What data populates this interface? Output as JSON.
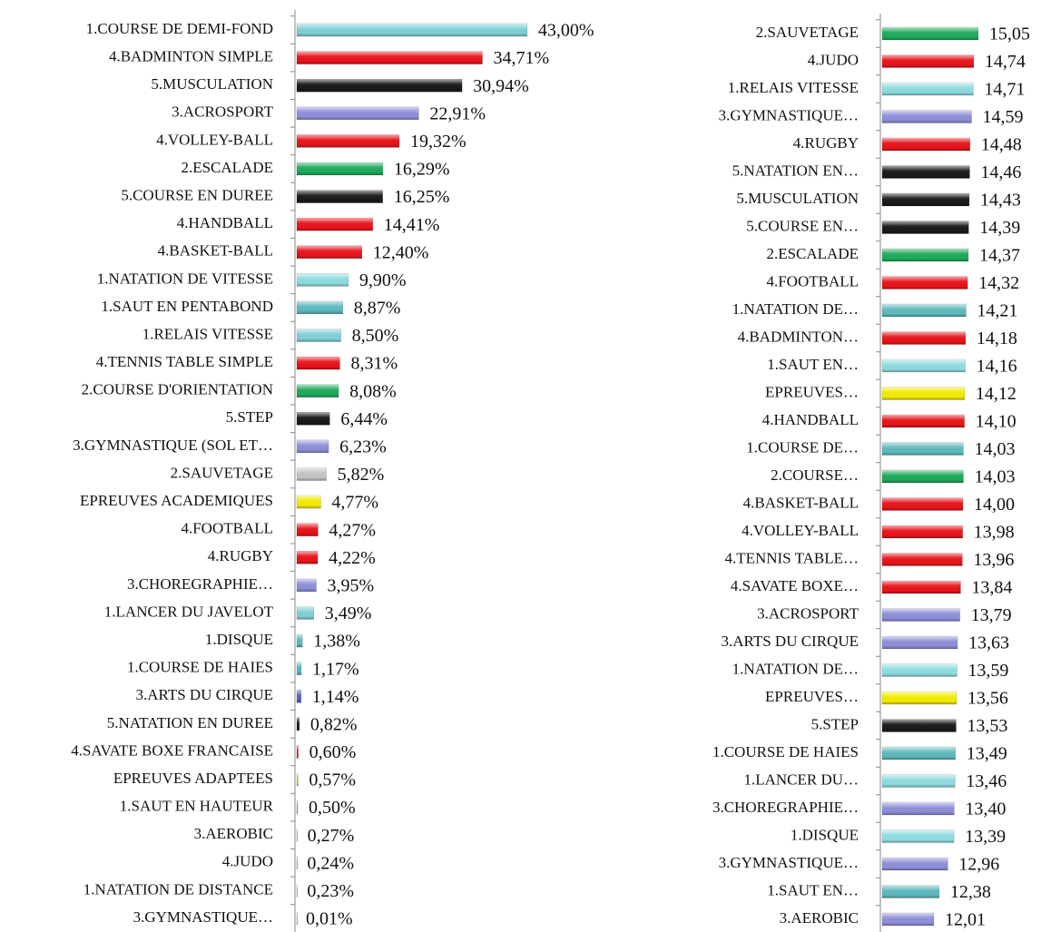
{
  "chart_data": [
    {
      "type": "bar",
      "orientation": "horizontal",
      "categories": [
        "1.COURSE DE DEMI-FOND",
        "4.BADMINTON SIMPLE",
        "5.MUSCULATION",
        "3.ACROSPORT",
        "4.VOLLEY-BALL",
        "2.ESCALADE",
        "5.COURSE EN DUREE",
        "4.HANDBALL",
        "4.BASKET-BALL",
        "1.NATATION DE VITESSE",
        "1.SAUT EN PENTABOND",
        "1.RELAIS VITESSE",
        "4.TENNIS TABLE SIMPLE",
        "2.COURSE D'ORIENTATION",
        "5.STEP",
        "3.GYMNASTIQUE (SOL ET…",
        "2.SAUVETAGE",
        "EPREUVES ACADEMIQUES",
        "4.FOOTBALL",
        "4.RUGBY",
        "3.CHOREGRAPHIE…",
        "1.LANCER DU JAVELOT",
        "1.DISQUE",
        "1.COURSE DE HAIES",
        "3.ARTS DU CIRQUE",
        "5.NATATION EN DUREE",
        "4.SAVATE BOXE FRANCAISE",
        "EPREUVES ADAPTEES",
        "1.SAUT EN HAUTEUR",
        "3.AEROBIC",
        "4.JUDO",
        "1.NATATION DE DISTANCE",
        "3.GYMNASTIQUE…"
      ],
      "values": [
        43.0,
        34.71,
        30.94,
        22.91,
        19.32,
        16.29,
        16.25,
        14.41,
        12.4,
        9.9,
        8.87,
        8.5,
        8.31,
        8.08,
        6.44,
        6.23,
        5.82,
        4.77,
        4.27,
        4.22,
        3.95,
        3.49,
        1.38,
        1.17,
        1.14,
        0.82,
        0.6,
        0.57,
        0.5,
        0.27,
        0.24,
        0.23,
        0.01
      ],
      "value_labels": [
        "43,00%",
        "34,71%",
        "30,94%",
        "22,91%",
        "19,32%",
        "16,29%",
        "16,25%",
        "14,41%",
        "12,40%",
        "9,90%",
        "8,87%",
        "8,50%",
        "8,31%",
        "8,08%",
        "6,44%",
        "6,23%",
        "5,82%",
        "4,77%",
        "4,27%",
        "4,22%",
        "3,95%",
        "3,49%",
        "1,38%",
        "1,17%",
        "1,14%",
        "0,82%",
        "0,60%",
        "0,57%",
        "0,50%",
        "0,27%",
        "0,24%",
        "0,23%",
        "0,01%"
      ],
      "colors": [
        "#7fd0d6",
        "#e8141b",
        "#1a1a1a",
        "#8e8fd8",
        "#e8141b",
        "#1faa5a",
        "#1a1a1a",
        "#e8141b",
        "#e8141b",
        "#8fdce0",
        "#5fb9bc",
        "#7fd0d6",
        "#e8141b",
        "#1faa5a",
        "#1a1a1a",
        "#8e8fd8",
        "#c4c4c4",
        "#f2ea00",
        "#e8141b",
        "#e8141b",
        "#8e8fd8",
        "#7fd0d6",
        "#5fb9bc",
        "#5fb9bc",
        "#5a5ec8",
        "#1a1a1a",
        "#e8141b",
        "#d0c800",
        "#5fb9bc",
        "#8e8fd8",
        "#d06060",
        "#8e8fd8",
        "#8e8fd8"
      ],
      "xlim": [
        0,
        50
      ]
    },
    {
      "type": "bar",
      "orientation": "horizontal",
      "categories": [
        "2.SAUVETAGE",
        "4.JUDO",
        "1.RELAIS VITESSE",
        "3.GYMNASTIQUE…",
        "4.RUGBY",
        "5.NATATION EN…",
        "5.MUSCULATION",
        "5.COURSE EN…",
        "2.ESCALADE",
        "4.FOOTBALL",
        "1.NATATION DE…",
        "4.BADMINTON…",
        "1.SAUT EN…",
        "EPREUVES…",
        "4.HANDBALL",
        "1.COURSE DE…",
        "2.COURSE…",
        "4.BASKET-BALL",
        "4.VOLLEY-BALL",
        "4.TENNIS TABLE…",
        "4.SAVATE BOXE…",
        "3.ACROSPORT",
        "3.ARTS DU CIRQUE",
        "1.NATATION DE…",
        "EPREUVES…",
        "5.STEP",
        "1.COURSE DE HAIES",
        "1.LANCER DU…",
        "3.CHOREGRAPHIE…",
        "1.DISQUE",
        "3.GYMNASTIQUE…",
        "1.SAUT EN…",
        "3.AEROBIC"
      ],
      "values": [
        15.05,
        14.74,
        14.71,
        14.59,
        14.48,
        14.46,
        14.43,
        14.39,
        14.37,
        14.32,
        14.21,
        14.18,
        14.16,
        14.12,
        14.1,
        14.03,
        14.03,
        14.0,
        13.98,
        13.96,
        13.84,
        13.79,
        13.63,
        13.59,
        13.56,
        13.53,
        13.49,
        13.46,
        13.4,
        13.39,
        12.96,
        12.38,
        12.01
      ],
      "value_labels": [
        "15,05",
        "14,74",
        "14,71",
        "14,59",
        "14,48",
        "14,46",
        "14,43",
        "14,39",
        "14,37",
        "14,32",
        "14,21",
        "14,18",
        "14,16",
        "14,12",
        "14,10",
        "14,03",
        "14,03",
        "14,00",
        "13,98",
        "13,96",
        "13,84",
        "13,79",
        "13,63",
        "13,59",
        "13,56",
        "13,53",
        "13,49",
        "13,46",
        "13,40",
        "13,39",
        "12,96",
        "12,38",
        "12,01"
      ],
      "colors": [
        "#1faa5a",
        "#e8141b",
        "#8fdce0",
        "#8e8fd8",
        "#e8141b",
        "#1a1a1a",
        "#1a1a1a",
        "#1a1a1a",
        "#1faa5a",
        "#e8141b",
        "#5fb9bc",
        "#e8141b",
        "#8fdce0",
        "#f2ea00",
        "#e8141b",
        "#5fb9bc",
        "#1faa5a",
        "#e8141b",
        "#e8141b",
        "#e8141b",
        "#e8141b",
        "#8e8fd8",
        "#8e8fd8",
        "#8fdce0",
        "#f2ea00",
        "#1a1a1a",
        "#5fb9bc",
        "#8fdce0",
        "#8e8fd8",
        "#8fdce0",
        "#8e8fd8",
        "#5fb9bc",
        "#8e8fd8"
      ],
      "xlim": [
        8.35,
        16
      ]
    }
  ]
}
